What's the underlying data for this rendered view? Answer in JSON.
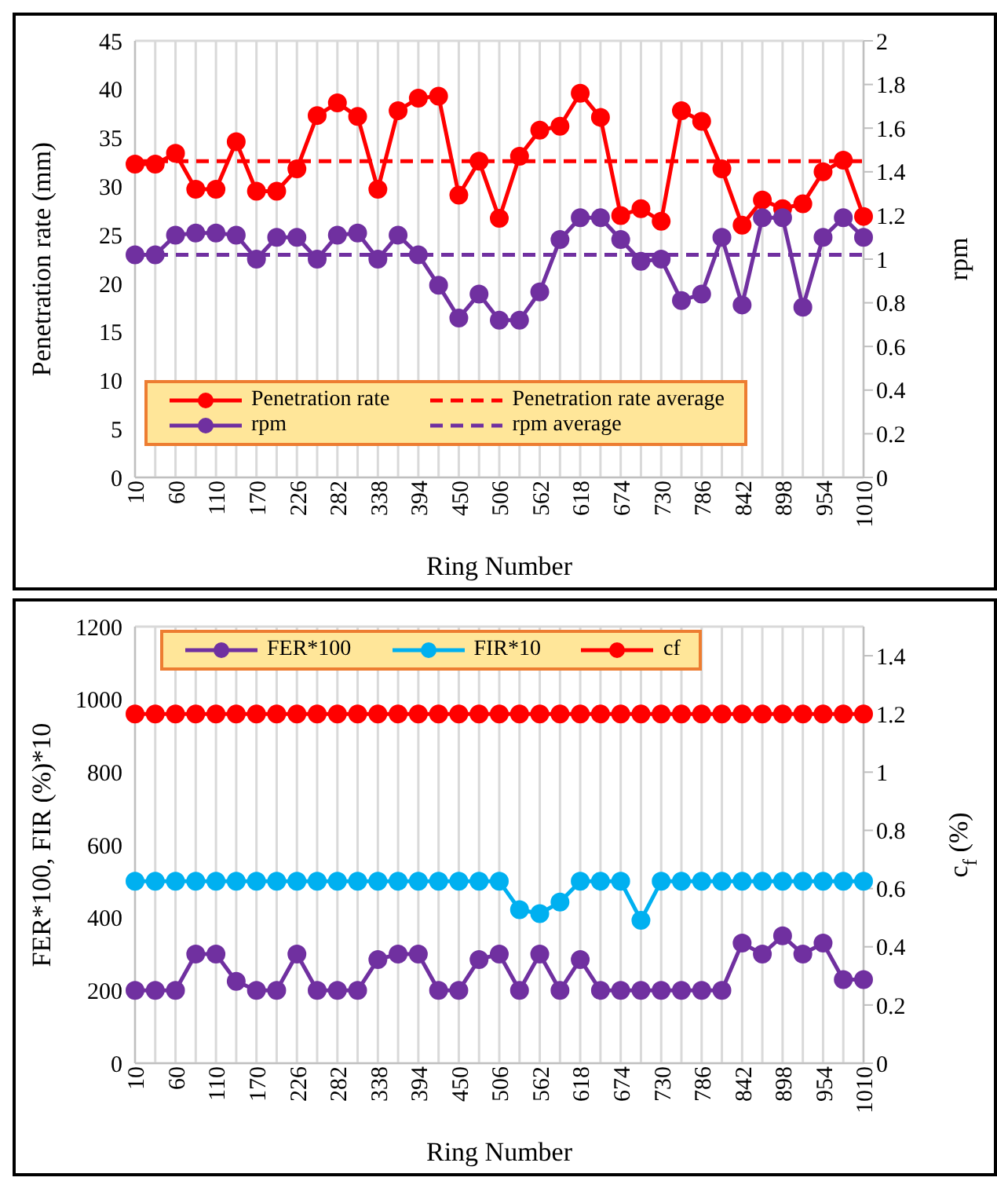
{
  "chart_data": [
    {
      "type": "line",
      "categories": [
        "10",
        null,
        "60",
        null,
        "110",
        null,
        "170",
        null,
        "226",
        null,
        "282",
        null,
        "338",
        null,
        "394",
        null,
        "450",
        null,
        "506",
        null,
        "562",
        null,
        "618",
        null,
        "674",
        null,
        "730",
        null,
        "786",
        null,
        "842",
        null,
        "898",
        null,
        "954",
        null,
        "1010"
      ],
      "xlabel": "Ring Number",
      "ylabel": "Penetration rate (mm)",
      "y2label": "rpm",
      "ylim": [
        0,
        45
      ],
      "yticks": [
        0,
        5,
        10,
        15,
        20,
        25,
        30,
        35,
        40,
        45
      ],
      "y2lim": [
        0,
        2
      ],
      "y2ticks": [
        0,
        0.2,
        0.4,
        0.6,
        0.8,
        1,
        1.2,
        1.4,
        1.6,
        1.8,
        2
      ],
      "grid": true,
      "legend": "bottom left",
      "series": [
        {
          "name": "Penetration rate",
          "color": "#ff0000",
          "marker": "circle",
          "line_style": "solid",
          "values": [
            32.3,
            32.3,
            33.4,
            29.7,
            29.7,
            34.6,
            29.5,
            29.5,
            31.8,
            37.3,
            38.6,
            37.2,
            29.7,
            37.8,
            39.1,
            39.3,
            29.1,
            32.6,
            26.7,
            33.1,
            35.8,
            36.2,
            39.6,
            37.1,
            27.0,
            27.7,
            26.4,
            37.8,
            36.7,
            31.8,
            26.0,
            28.6,
            27.7,
            28.2,
            31.5,
            32.7,
            26.9
          ]
        },
        {
          "name": "Penetration rate average",
          "color": "#ff0000",
          "marker": "none",
          "line_style": "dashed",
          "values": [
            32.6,
            32.6,
            32.6,
            32.6,
            32.6,
            32.6,
            32.6,
            32.6,
            32.6,
            32.6,
            32.6,
            32.6,
            32.6,
            32.6,
            32.6,
            32.6,
            32.6,
            32.6,
            32.6,
            32.6,
            32.6,
            32.6,
            32.6,
            32.6,
            32.6,
            32.6,
            32.6,
            32.6,
            32.6,
            32.6,
            32.6,
            32.6,
            32.6,
            32.6,
            32.6,
            32.6,
            32.6
          ]
        },
        {
          "name": "rpm",
          "color": "#7030a0",
          "marker": "circle",
          "line_style": "solid",
          "axis": "y2",
          "values": [
            1.02,
            1.02,
            1.11,
            1.12,
            1.12,
            1.11,
            1.0,
            1.1,
            1.1,
            1.0,
            1.11,
            1.12,
            1.0,
            1.11,
            1.02,
            0.88,
            0.73,
            0.84,
            0.72,
            0.72,
            0.85,
            1.09,
            1.19,
            1.19,
            1.09,
            0.99,
            1.0,
            0.81,
            0.84,
            1.1,
            0.79,
            1.19,
            1.19,
            0.78,
            1.1,
            1.19,
            1.1
          ]
        },
        {
          "name": "rpm average",
          "color": "#7030a0",
          "marker": "none",
          "line_style": "dashed",
          "axis": "y2",
          "values": [
            1.02,
            1.02,
            1.02,
            1.02,
            1.02,
            1.02,
            1.02,
            1.02,
            1.02,
            1.02,
            1.02,
            1.02,
            1.02,
            1.02,
            1.02,
            1.02,
            1.02,
            1.02,
            1.02,
            1.02,
            1.02,
            1.02,
            1.02,
            1.02,
            1.02,
            1.02,
            1.02,
            1.02,
            1.02,
            1.02,
            1.02,
            1.02,
            1.02,
            1.02,
            1.02,
            1.02,
            1.02
          ]
        }
      ]
    },
    {
      "type": "line",
      "categories": [
        "10",
        null,
        "60",
        null,
        "110",
        null,
        "170",
        null,
        "226",
        null,
        "282",
        null,
        "338",
        null,
        "394",
        null,
        "450",
        null,
        "506",
        null,
        "562",
        null,
        "618",
        null,
        "674",
        null,
        "730",
        null,
        "786",
        null,
        "842",
        null,
        "898",
        null,
        "954",
        null,
        "1010"
      ],
      "xlabel": "Ring Number",
      "ylabel": "FER*100, FIR (%)*10",
      "y2label": "c$_{f}$ (%)",
      "ylim": [
        0,
        1200
      ],
      "yticks": [
        0,
        200,
        400,
        600,
        800,
        1000,
        1200
      ],
      "y2lim": [
        0,
        1.5
      ],
      "y2ticks": [
        0,
        0.2,
        0.4,
        0.6,
        0.8,
        1,
        1.2,
        1.4
      ],
      "grid": true,
      "legend": "top left",
      "series": [
        {
          "name": "FER*100",
          "color": "#7030a0",
          "marker": "circle",
          "line_style": "solid",
          "values": [
            200,
            200,
            200,
            300,
            300,
            225,
            200,
            200,
            300,
            200,
            200,
            200,
            285,
            300,
            300,
            200,
            200,
            285,
            300,
            200,
            300,
            200,
            285,
            200,
            200,
            200,
            200,
            200,
            200,
            200,
            330,
            300,
            350,
            300,
            330,
            230,
            230
          ]
        },
        {
          "name": "FIR*10",
          "color": "#00b0f0",
          "marker": "circle",
          "line_style": "solid",
          "values": [
            500,
            500,
            500,
            500,
            500,
            500,
            500,
            500,
            500,
            500,
            500,
            500,
            500,
            500,
            500,
            500,
            500,
            500,
            500,
            422,
            411,
            443,
            500,
            500,
            500,
            393,
            500,
            500,
            500,
            500,
            500,
            500,
            500,
            500,
            500,
            500,
            500
          ]
        },
        {
          "name": "cf",
          "color": "#ff0000",
          "marker": "circle",
          "line_style": "solid",
          "axis": "y2",
          "values": [
            1.2,
            1.2,
            1.2,
            1.2,
            1.2,
            1.2,
            1.2,
            1.2,
            1.2,
            1.2,
            1.2,
            1.2,
            1.2,
            1.2,
            1.2,
            1.2,
            1.2,
            1.2,
            1.2,
            1.2,
            1.2,
            1.2,
            1.2,
            1.2,
            1.2,
            1.2,
            1.2,
            1.2,
            1.2,
            1.2,
            1.2,
            1.2,
            1.2,
            1.2,
            1.2,
            1.2,
            1.2
          ]
        }
      ]
    }
  ]
}
